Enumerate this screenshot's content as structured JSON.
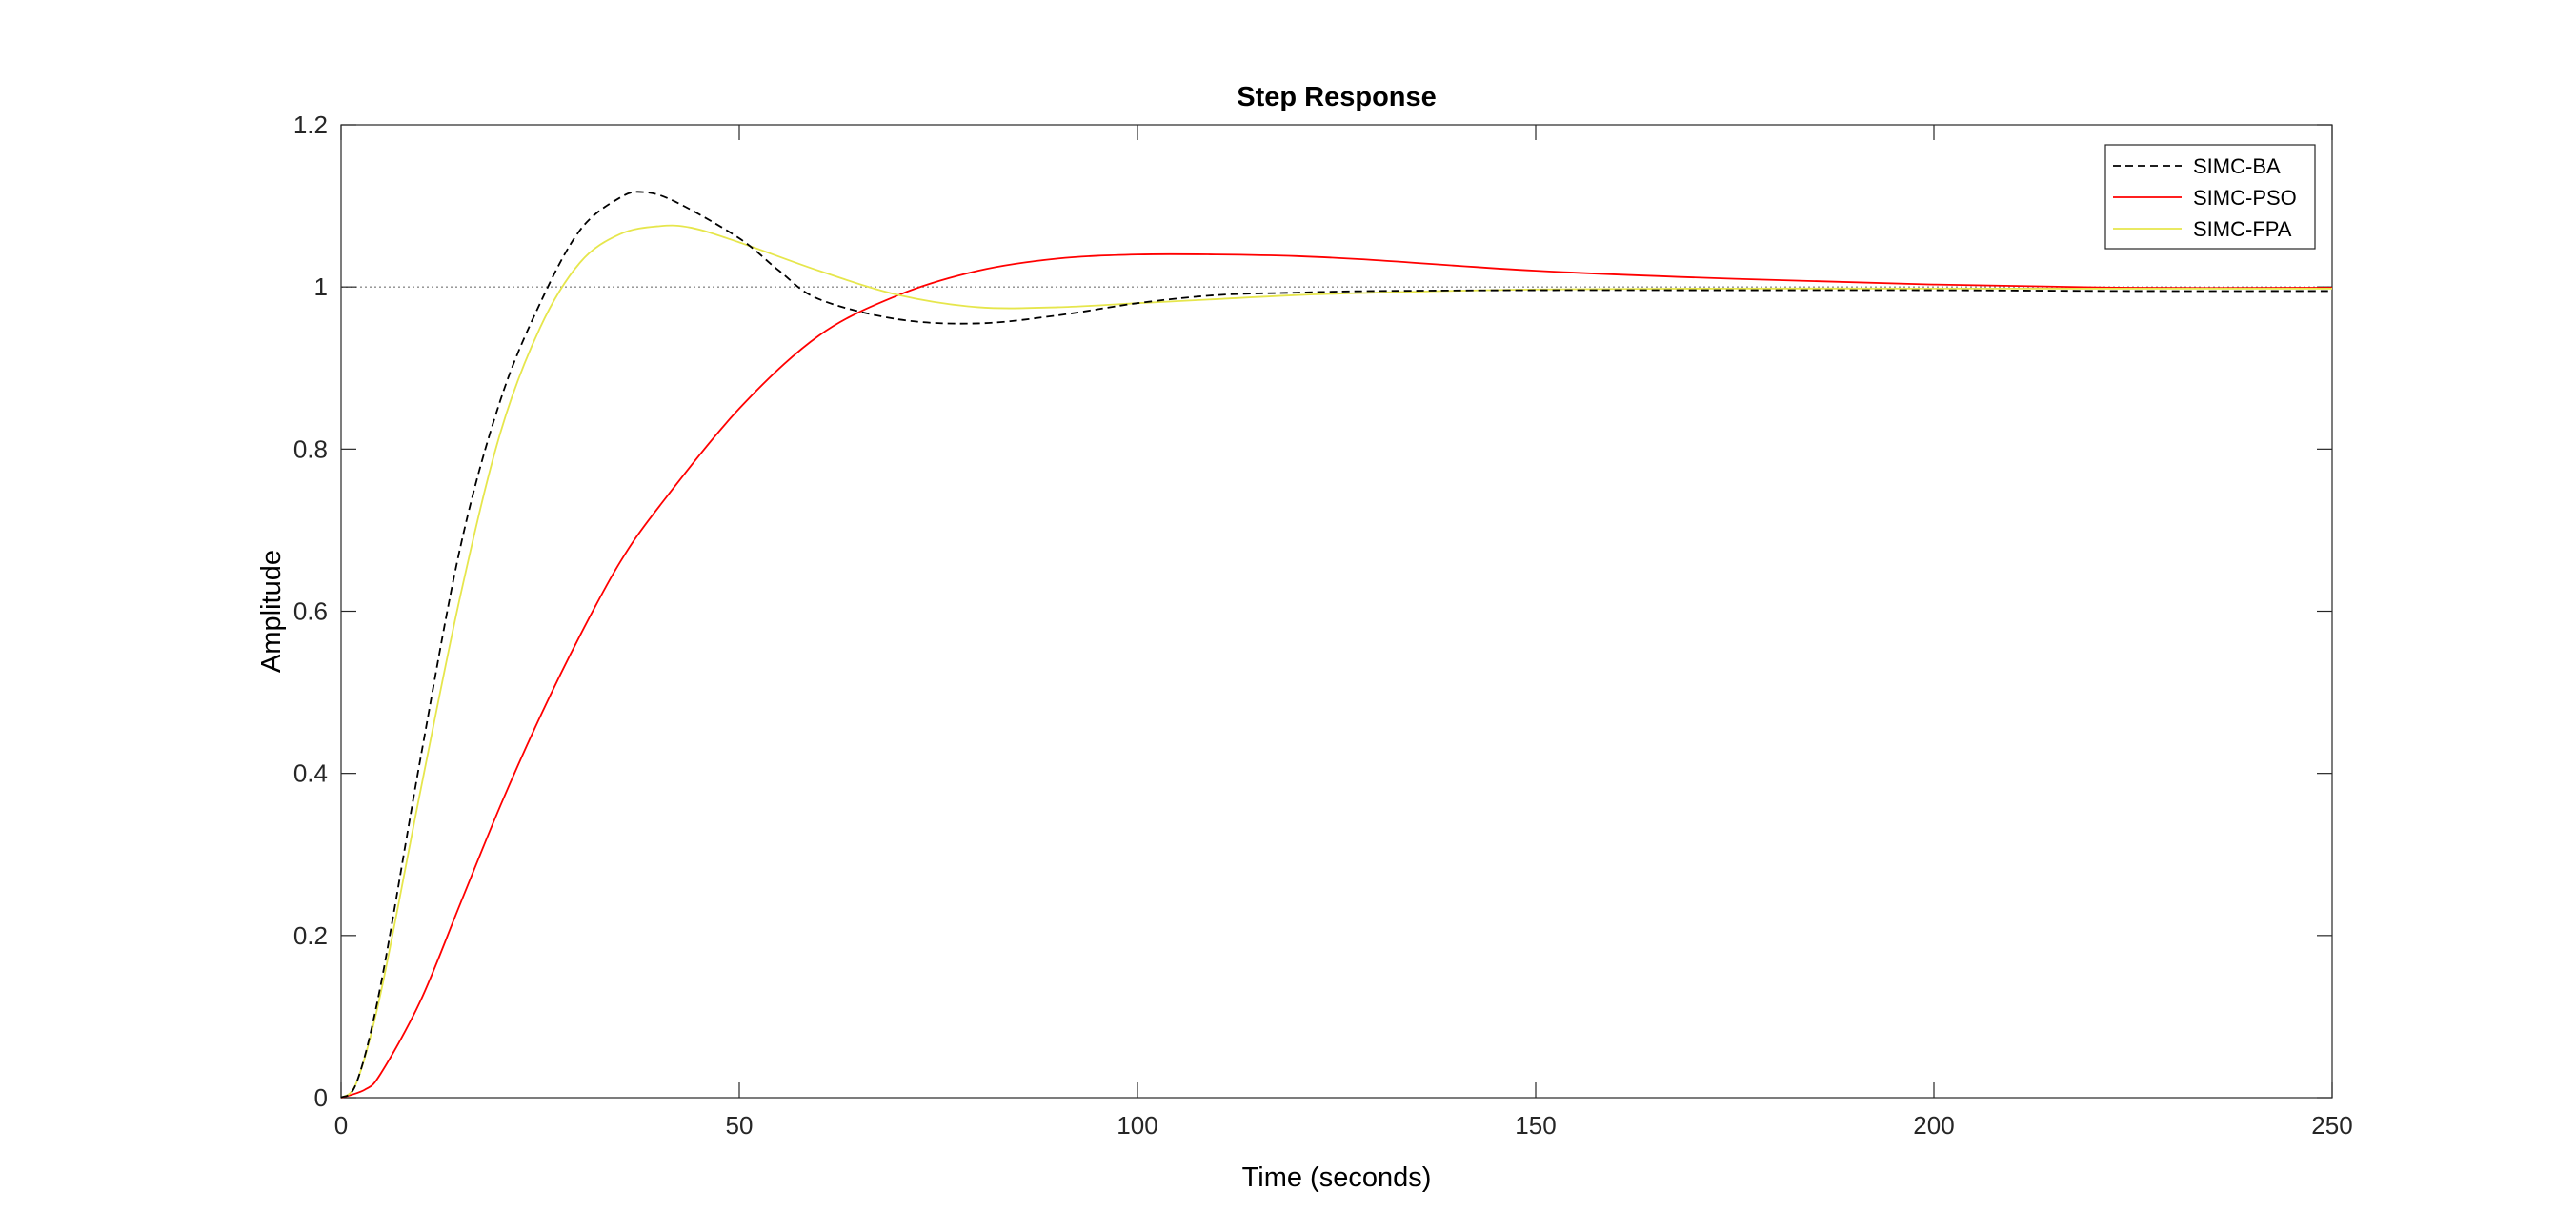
{
  "chart_data": {
    "type": "line",
    "title": "Step Response",
    "xlabel": "Time (seconds)",
    "ylabel": "Amplitude",
    "xlim": [
      0,
      250
    ],
    "ylim": [
      0,
      1.2
    ],
    "xticks": [
      0,
      50,
      100,
      150,
      200,
      250
    ],
    "xtick_labels": [
      "0",
      "50",
      "100",
      "150",
      "200",
      "250"
    ],
    "yticks": [
      0,
      0.2,
      0.4,
      0.6,
      0.8,
      1.0,
      1.2
    ],
    "ytick_labels": [
      "0",
      "0.2",
      "0.4",
      "0.6",
      "0.8",
      "1",
      "1.2"
    ],
    "reference_line": {
      "y": 1.0,
      "style": "dotted",
      "color": "#8c8c8c"
    },
    "grid": false,
    "legend_position": "top-right",
    "series": [
      {
        "name": "SIMC-BA",
        "color": "#000000",
        "style": "dashed",
        "x": [
          0,
          2,
          5,
          10,
          15,
          20,
          25,
          30,
          35,
          38,
          42,
          50,
          55,
          60,
          70,
          80,
          90,
          100,
          110,
          120,
          130,
          150,
          175,
          200,
          225,
          250
        ],
        "y": [
          0,
          0.02,
          0.14,
          0.42,
          0.68,
          0.86,
          0.98,
          1.07,
          1.11,
          1.117,
          1.105,
          1.06,
          1.02,
          0.985,
          0.96,
          0.955,
          0.965,
          0.98,
          0.99,
          0.993,
          0.995,
          0.996,
          0.996,
          0.996,
          0.995,
          0.995
        ]
      },
      {
        "name": "SIMC-PSO",
        "color": "#ff0000",
        "style": "solid",
        "x": [
          0,
          3,
          5,
          10,
          15,
          20,
          25,
          30,
          35,
          40,
          50,
          60,
          70,
          80,
          90,
          100,
          110,
          120,
          130,
          150,
          175,
          200,
          225,
          250
        ],
        "y": [
          0,
          0.01,
          0.03,
          0.12,
          0.24,
          0.36,
          0.47,
          0.57,
          0.66,
          0.73,
          0.85,
          0.94,
          0.99,
          1.02,
          1.035,
          1.04,
          1.04,
          1.038,
          1.033,
          1.02,
          1.01,
          1.003,
          0.999,
          0.999
        ]
      },
      {
        "name": "SIMC-FPA",
        "color": "#e6e64c",
        "style": "solid",
        "x": [
          0,
          2,
          5,
          10,
          15,
          20,
          25,
          30,
          35,
          40,
          44,
          50,
          60,
          70,
          80,
          90,
          100,
          110,
          120,
          130,
          150,
          175,
          200,
          225,
          250
        ],
        "y": [
          0,
          0.02,
          0.13,
          0.38,
          0.62,
          0.82,
          0.95,
          1.03,
          1.065,
          1.075,
          1.073,
          1.055,
          1.02,
          0.99,
          0.975,
          0.975,
          0.98,
          0.985,
          0.99,
          0.993,
          0.997,
          0.998,
          0.998,
          0.998,
          0.998
        ]
      }
    ]
  }
}
